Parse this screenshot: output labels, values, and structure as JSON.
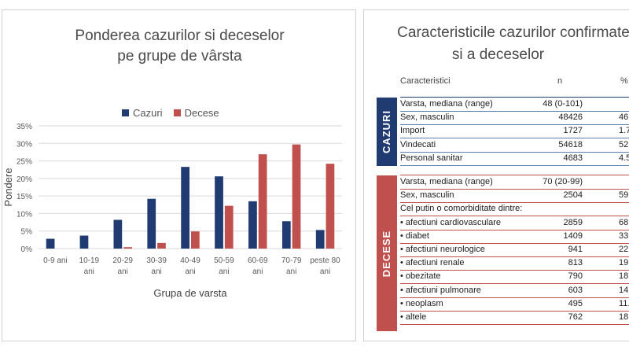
{
  "left": {
    "title_line1": "Ponderea cazurilor si deceselor",
    "title_line2": "pe grupe de vârsta"
  },
  "chart_data": {
    "type": "bar",
    "categories": [
      "0-9 ani",
      "10-19 ani",
      "20-29 ani",
      "30-39 ani",
      "40-49 ani",
      "50-59 ani",
      "60-69 ani",
      "70-79 ani",
      "peste 80 ani"
    ],
    "category_lines": [
      [
        "0-9 ani"
      ],
      [
        "10-19",
        "ani"
      ],
      [
        "20-29",
        "ani"
      ],
      [
        "30-39",
        "ani"
      ],
      [
        "40-49",
        "ani"
      ],
      [
        "50-59",
        "ani"
      ],
      [
        "60-69",
        "ani"
      ],
      [
        "70-79",
        "ani"
      ],
      [
        "peste 80",
        "ani"
      ]
    ],
    "series": [
      {
        "name": "Cazuri",
        "color": "#1f3b72",
        "values": [
          2.8,
          3.7,
          8.2,
          14.2,
          23.3,
          20.6,
          13.5,
          7.8,
          5.3
        ]
      },
      {
        "name": "Decese",
        "color": "#c0504d",
        "values": [
          0.0,
          0.0,
          0.4,
          1.6,
          4.9,
          12.2,
          26.9,
          29.7,
          24.2
        ]
      }
    ],
    "xlabel": "Grupa de varsta",
    "ylabel": "Pondere",
    "ylim": [
      0,
      35
    ],
    "yticks": [
      "0%",
      "5%",
      "10%",
      "15%",
      "20%",
      "25%",
      "30%",
      "35%"
    ],
    "legend_position": "top-center",
    "grid": true
  },
  "right": {
    "title_line1": "Caracteristicile cazurilor confirmate",
    "title_line2": "si a deceselor",
    "header_char": "Caracteristici",
    "header_n": "n",
    "header_pct": "%",
    "cazuri_label": "CAZURI",
    "decese_label": "DECESE",
    "cazuri_rows": [
      {
        "label": "Varsta, mediana (range)",
        "n": "48 (0-101)",
        "pct": ""
      },
      {
        "label": "Sex, masculin",
        "n": "48426",
        "pct": "46."
      },
      {
        "label": "Import",
        "n": "1727",
        "pct": "1.7"
      },
      {
        "label": "Vindecati",
        "n": "54618",
        "pct": "52."
      },
      {
        "label": "Personal sanitar",
        "n": "4683",
        "pct": "4.5"
      }
    ],
    "decese_rows": [
      {
        "label": "Varsta, mediana (range)",
        "n": "70 (20-99)",
        "pct": ""
      },
      {
        "label": "Sex, masculin",
        "n": "2504",
        "pct": "59."
      },
      {
        "label": "Cel putin o comorbiditate dintre:",
        "n": "",
        "pct": ""
      },
      {
        "label": "• afectiuni cardiovasculare",
        "n": "2859",
        "pct": "68."
      },
      {
        "label": "• diabet",
        "n": "1409",
        "pct": "33."
      },
      {
        "label": "• afectiuni neurologice",
        "n": "941",
        "pct": "22."
      },
      {
        "label": "• afectiuni renale",
        "n": "813",
        "pct": "19."
      },
      {
        "label": "• obezitate",
        "n": "790",
        "pct": "18."
      },
      {
        "label": "• afectiuni pulmonare",
        "n": "603",
        "pct": "14."
      },
      {
        "label": "• neoplasm",
        "n": "495",
        "pct": "11."
      },
      {
        "label": "• altele",
        "n": "762",
        "pct": "18."
      }
    ]
  }
}
